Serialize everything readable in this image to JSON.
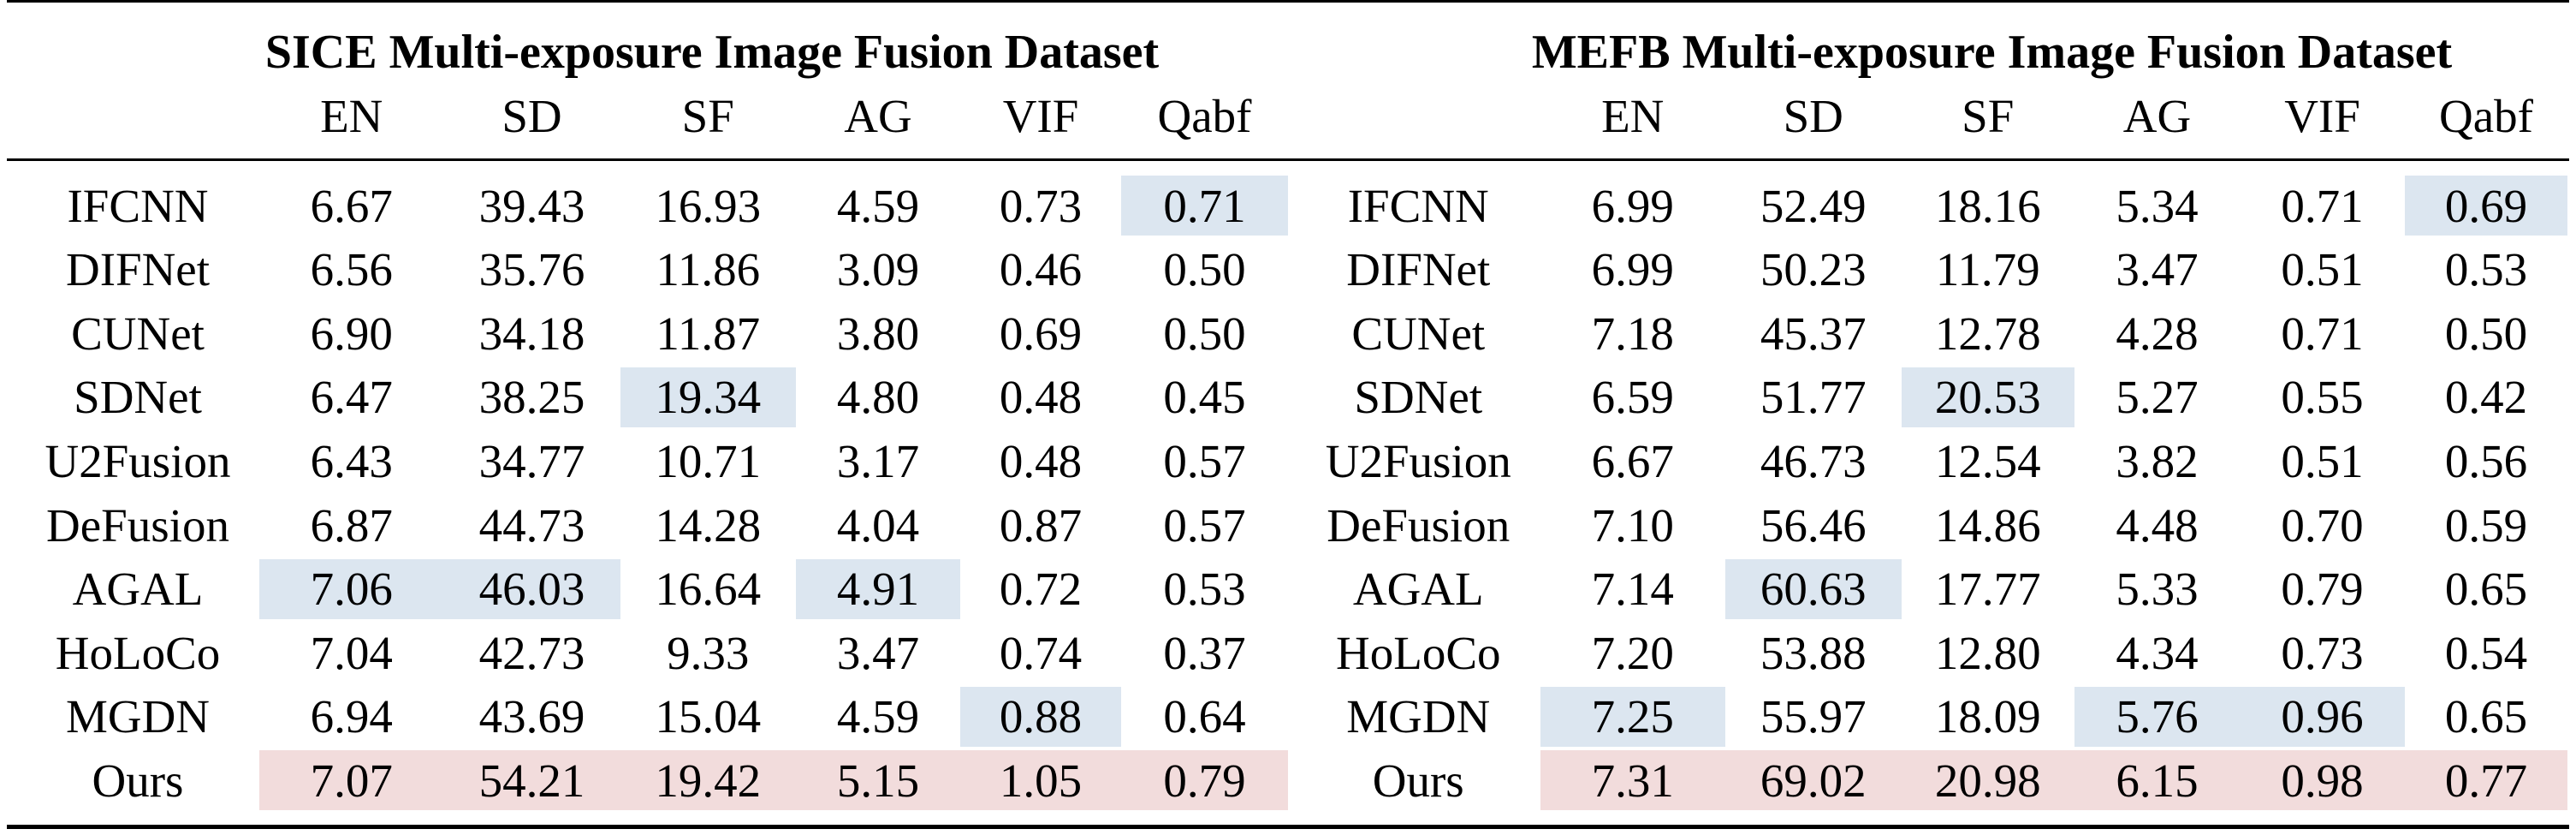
{
  "table": {
    "sections": [
      {
        "title": "SICE Multi-exposure Image Fusion Dataset",
        "columns": [
          "EN",
          "SD",
          "SF",
          "AG",
          "VIF",
          "Qabf"
        ],
        "rows": [
          [
            "IFCNN",
            "6.67",
            "39.43",
            "16.93",
            "4.59",
            "0.73",
            "0.71"
          ],
          [
            "DIFNet",
            "6.56",
            "35.76",
            "11.86",
            "3.09",
            "0.46",
            "0.50"
          ],
          [
            "CUNet",
            "6.90",
            "34.18",
            "11.87",
            "3.80",
            "0.69",
            "0.50"
          ],
          [
            "SDNet",
            "6.47",
            "38.25",
            "19.34",
            "4.80",
            "0.48",
            "0.45"
          ],
          [
            "U2Fusion",
            "6.43",
            "34.77",
            "10.71",
            "3.17",
            "0.48",
            "0.57"
          ],
          [
            "DeFusion",
            "6.87",
            "44.73",
            "14.28",
            "4.04",
            "0.87",
            "0.57"
          ],
          [
            "AGAL",
            "7.06",
            "46.03",
            "16.64",
            "4.91",
            "0.72",
            "0.53"
          ],
          [
            "HoLoCo",
            "7.04",
            "42.73",
            "9.33",
            "3.47",
            "0.74",
            "0.37"
          ],
          [
            "MGDN",
            "6.94",
            "43.69",
            "15.04",
            "4.59",
            "0.88",
            "0.64"
          ],
          [
            "Ours",
            "7.07",
            "54.21",
            "19.42",
            "5.15",
            "1.05",
            "0.79"
          ]
        ],
        "highlight_blue": [
          [
            0,
            6
          ],
          [
            3,
            3
          ],
          [
            6,
            1
          ],
          [
            6,
            2
          ],
          [
            6,
            4
          ],
          [
            8,
            5
          ]
        ],
        "highlight_pink_row": 9
      },
      {
        "title": "MEFB Multi-exposure Image Fusion Dataset",
        "columns": [
          "EN",
          "SD",
          "SF",
          "AG",
          "VIF",
          "Qabf"
        ],
        "rows": [
          [
            "IFCNN",
            "6.99",
            "52.49",
            "18.16",
            "5.34",
            "0.71",
            "0.69"
          ],
          [
            "DIFNet",
            "6.99",
            "50.23",
            "11.79",
            "3.47",
            "0.51",
            "0.53"
          ],
          [
            "CUNet",
            "7.18",
            "45.37",
            "12.78",
            "4.28",
            "0.71",
            "0.50"
          ],
          [
            "SDNet",
            "6.59",
            "51.77",
            "20.53",
            "5.27",
            "0.55",
            "0.42"
          ],
          [
            "U2Fusion",
            "6.67",
            "46.73",
            "12.54",
            "3.82",
            "0.51",
            "0.56"
          ],
          [
            "DeFusion",
            "7.10",
            "56.46",
            "14.86",
            "4.48",
            "0.70",
            "0.59"
          ],
          [
            "AGAL",
            "7.14",
            "60.63",
            "17.77",
            "5.33",
            "0.79",
            "0.65"
          ],
          [
            "HoLoCo",
            "7.20",
            "53.88",
            "12.80",
            "4.34",
            "0.73",
            "0.54"
          ],
          [
            "MGDN",
            "7.25",
            "55.97",
            "18.09",
            "5.76",
            "0.96",
            "0.65"
          ],
          [
            "Ours",
            "7.31",
            "69.02",
            "20.98",
            "6.15",
            "0.98",
            "0.77"
          ]
        ],
        "highlight_blue": [
          [
            0,
            6
          ],
          [
            3,
            3
          ],
          [
            6,
            2
          ],
          [
            8,
            1
          ],
          [
            8,
            4
          ],
          [
            8,
            5
          ]
        ],
        "highlight_pink_row": 9
      }
    ]
  }
}
